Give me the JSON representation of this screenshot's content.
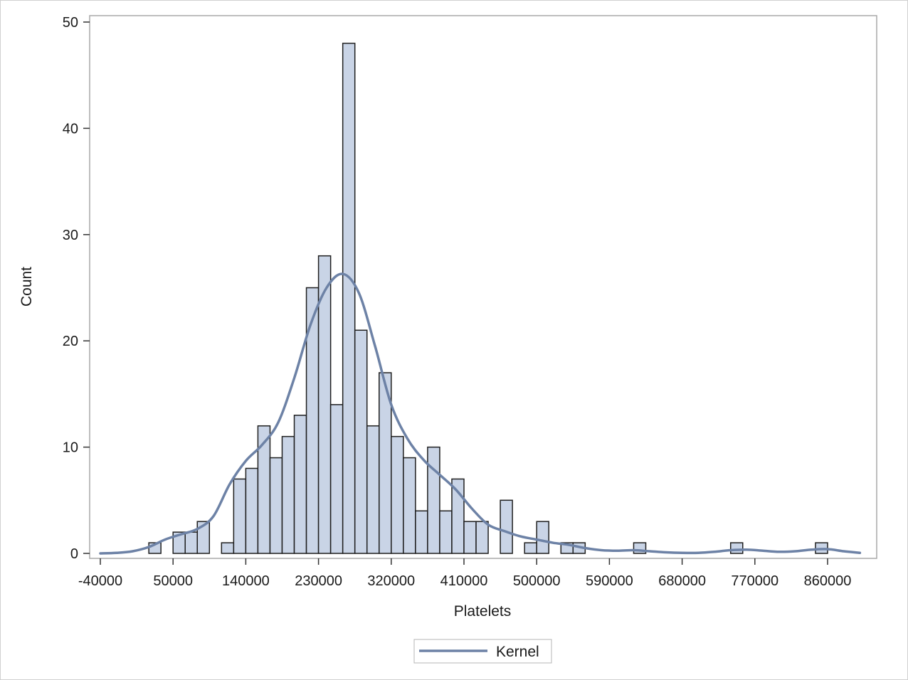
{
  "chart_data": {
    "type": "bar",
    "subtype": "histogram",
    "xlabel": "Platelets",
    "ylabel": "Count",
    "xlim": [
      -50000,
      900000
    ],
    "ylim": [
      0,
      50
    ],
    "x_ticks": [
      -40000,
      50000,
      140000,
      230000,
      320000,
      410000,
      500000,
      590000,
      680000,
      770000,
      860000
    ],
    "x_tick_labels": [
      "-40000",
      "50000",
      "140000",
      "230000",
      "320000",
      "410000",
      "500000",
      "590000",
      "680000",
      "770000",
      "860000"
    ],
    "y_ticks": [
      0,
      10,
      20,
      30,
      40,
      50
    ],
    "y_tick_labels": [
      "0",
      "10",
      "20",
      "30",
      "40",
      "50"
    ],
    "grid": false,
    "legend": {
      "entries": [
        "Kernel"
      ],
      "placement": "bottom-center"
    },
    "bin_width": 15000,
    "bins": [
      {
        "start": 20000,
        "count": 1
      },
      {
        "start": 35000,
        "count": 0
      },
      {
        "start": 50000,
        "count": 2
      },
      {
        "start": 65000,
        "count": 2
      },
      {
        "start": 80000,
        "count": 3
      },
      {
        "start": 95000,
        "count": 0
      },
      {
        "start": 110000,
        "count": 1
      },
      {
        "start": 125000,
        "count": 7
      },
      {
        "start": 140000,
        "count": 8
      },
      {
        "start": 155000,
        "count": 12
      },
      {
        "start": 170000,
        "count": 9
      },
      {
        "start": 185000,
        "count": 11
      },
      {
        "start": 200000,
        "count": 13
      },
      {
        "start": 215000,
        "count": 25
      },
      {
        "start": 230000,
        "count": 28
      },
      {
        "start": 245000,
        "count": 14
      },
      {
        "start": 260000,
        "count": 48
      },
      {
        "start": 275000,
        "count": 21
      },
      {
        "start": 290000,
        "count": 12
      },
      {
        "start": 305000,
        "count": 17
      },
      {
        "start": 320000,
        "count": 11
      },
      {
        "start": 335000,
        "count": 9
      },
      {
        "start": 350000,
        "count": 4
      },
      {
        "start": 365000,
        "count": 10
      },
      {
        "start": 380000,
        "count": 4
      },
      {
        "start": 395000,
        "count": 7
      },
      {
        "start": 410000,
        "count": 3
      },
      {
        "start": 425000,
        "count": 3
      },
      {
        "start": 440000,
        "count": 0
      },
      {
        "start": 455000,
        "count": 5
      },
      {
        "start": 470000,
        "count": 0
      },
      {
        "start": 485000,
        "count": 1
      },
      {
        "start": 500000,
        "count": 3
      },
      {
        "start": 515000,
        "count": 0
      },
      {
        "start": 530000,
        "count": 1
      },
      {
        "start": 545000,
        "count": 1
      },
      {
        "start": 620000,
        "count": 1
      },
      {
        "start": 740000,
        "count": 1
      },
      {
        "start": 845000,
        "count": 1
      }
    ],
    "series": [
      {
        "name": "Kernel",
        "x": [
          -40000,
          -20000,
          0,
          20000,
          40000,
          60000,
          80000,
          100000,
          120000,
          140000,
          160000,
          180000,
          200000,
          220000,
          240000,
          260000,
          280000,
          300000,
          320000,
          340000,
          360000,
          380000,
          400000,
          420000,
          440000,
          460000,
          480000,
          500000,
          520000,
          540000,
          560000,
          580000,
          600000,
          620000,
          640000,
          660000,
          680000,
          700000,
          720000,
          740000,
          760000,
          780000,
          800000,
          820000,
          840000,
          860000,
          880000,
          900000
        ],
        "y": [
          0.0,
          0.05,
          0.2,
          0.6,
          1.3,
          1.8,
          2.3,
          3.5,
          6.5,
          8.7,
          10.2,
          12.3,
          16.5,
          21.5,
          25.0,
          26.3,
          24.5,
          19.5,
          14.0,
          10.8,
          8.8,
          7.4,
          6.0,
          4.2,
          2.7,
          2.1,
          1.6,
          1.3,
          1.0,
          0.8,
          0.5,
          0.3,
          0.25,
          0.3,
          0.2,
          0.1,
          0.05,
          0.05,
          0.15,
          0.3,
          0.35,
          0.25,
          0.15,
          0.2,
          0.35,
          0.4,
          0.2,
          0.05
        ]
      }
    ],
    "colors": {
      "bar_fill": "#c9d4e6",
      "bar_stroke": "#1f1f1f",
      "kernel_line": "#6d82a6",
      "frame": "#a9a9a9"
    }
  }
}
